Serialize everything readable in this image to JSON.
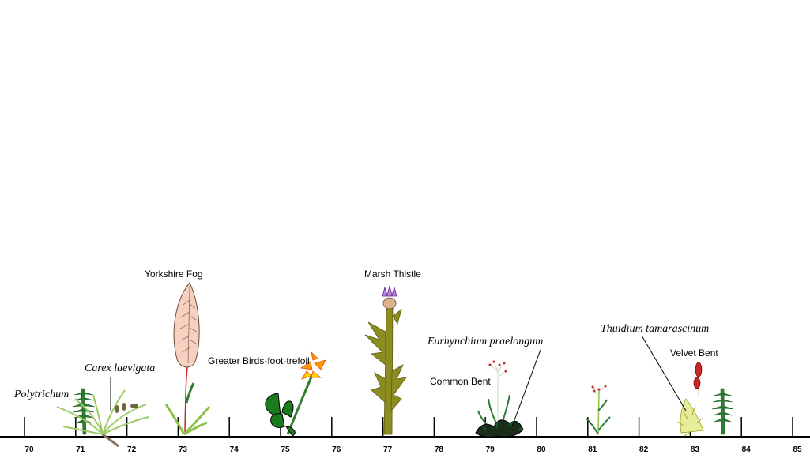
{
  "axis": {
    "ticks": [
      "70",
      "71",
      "72",
      "73",
      "74",
      "75",
      "76",
      "77",
      "78",
      "79",
      "80",
      "81",
      "82",
      "83",
      "84",
      "85"
    ]
  },
  "labels": {
    "polytrichum": "Polytrichum",
    "carex": "Carex laevigata",
    "yorkshire_fog": "Yorkshire Fog",
    "birds_foot": "Greater Birds-foot-trefoil",
    "marsh_thistle": "Marsh Thistle",
    "eurhynchium": "Eurhynchium praelongum",
    "common_bent": "Common Bent",
    "thuidium": "Thuidium tamarascinum",
    "velvet_bent": "Velvet Bent"
  },
  "colors": {
    "moss_green": "#2e7d32",
    "grass_green": "#8bc34a",
    "fog_leaf": "#f8d0c0",
    "trefoil_flower": "#ff9800",
    "thistle_flower": "#b388d6",
    "thistle_stem": "#8c8c20",
    "velvet_bent_flower": "#c62828"
  }
}
